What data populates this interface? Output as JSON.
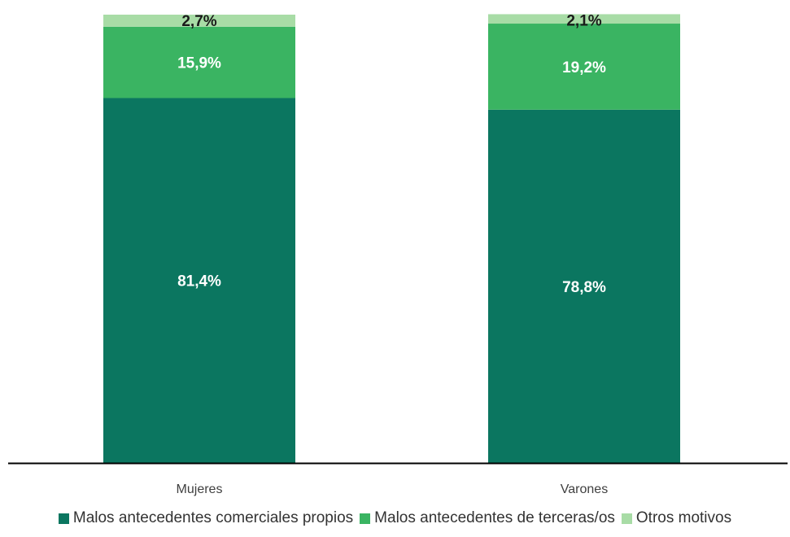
{
  "colors": {
    "propios": "#0b7660",
    "terceras": "#3ab462",
    "otros": "#a8dca6",
    "axis": "#000000",
    "label_dark": "#1a1a1a",
    "label_light": "#ffffff"
  },
  "chart_data": {
    "type": "bar",
    "stacked": true,
    "categories": [
      "Mujeres",
      "Varones"
    ],
    "series": [
      {
        "name": "Malos antecedentes comerciales propios",
        "values": [
          81.4,
          78.8
        ],
        "labels": [
          "81,4%",
          "78,8%"
        ]
      },
      {
        "name": "Malos antecedentes de terceras/os",
        "values": [
          15.9,
          19.2
        ],
        "labels": [
          "15,9%",
          "19,2%"
        ]
      },
      {
        "name": "Otros motivos",
        "values": [
          2.7,
          2.1
        ],
        "labels": [
          "2,7%",
          "2,1%"
        ]
      }
    ],
    "ylim": [
      0,
      100
    ],
    "grid": false,
    "legend_position": "bottom"
  }
}
